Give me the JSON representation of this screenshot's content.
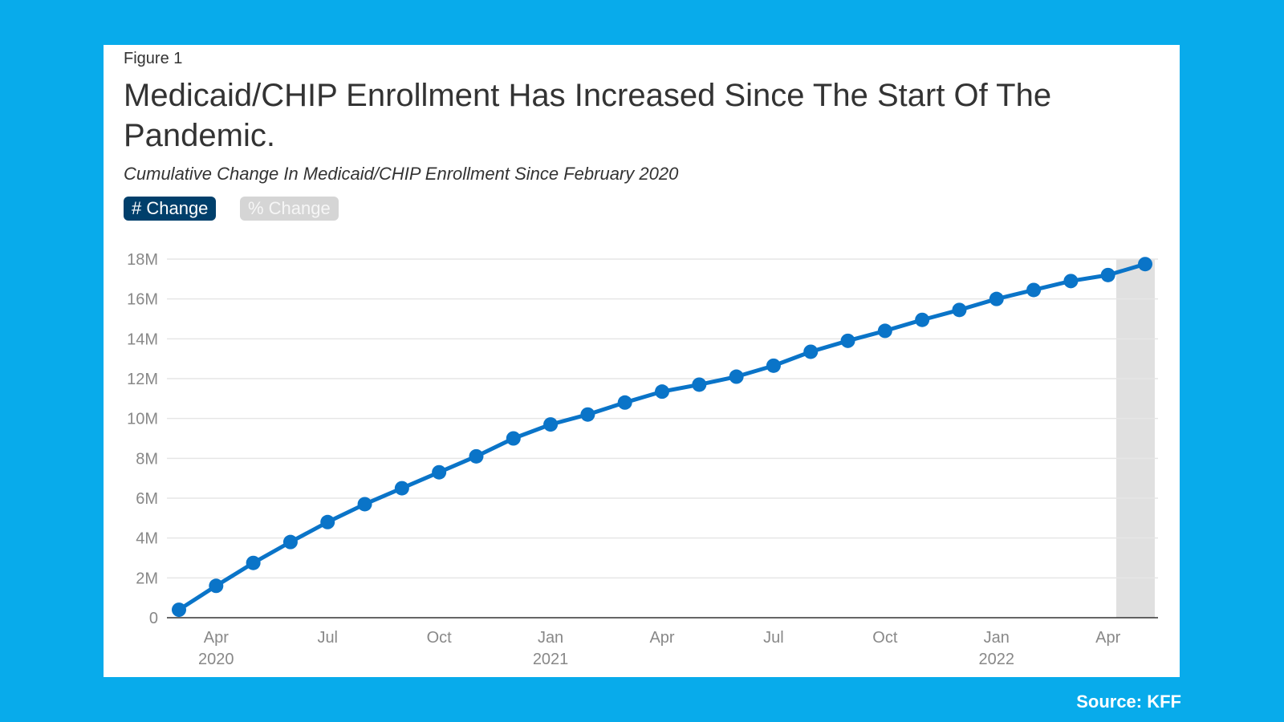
{
  "figure_label": "Figure 1",
  "toggle": {
    "active": "# Change",
    "inactive": "% Change"
  },
  "source": "Source: KFF",
  "colors": {
    "background": "#08abeb",
    "line": "#0a74c8",
    "active_button": "#003f6b",
    "highlight_band": "#e0e0e0"
  },
  "chart_data": {
    "type": "line",
    "title": "Medicaid/CHIP Enrollment Has Increased Since The Start Of The Pandemic.",
    "subtitle": "Cumulative Change In Medicaid/CHIP Enrollment Since February 2020",
    "x": [
      "2020-03",
      "2020-04",
      "2020-05",
      "2020-06",
      "2020-07",
      "2020-08",
      "2020-09",
      "2020-10",
      "2020-11",
      "2020-12",
      "2021-01",
      "2021-02",
      "2021-03",
      "2021-04",
      "2021-05",
      "2021-06",
      "2021-07",
      "2021-08",
      "2021-09",
      "2021-10",
      "2021-11",
      "2021-12",
      "2022-01",
      "2022-02",
      "2022-03",
      "2022-04",
      "2022-05"
    ],
    "values": [
      0.4,
      1.6,
      2.75,
      3.8,
      4.8,
      5.7,
      6.5,
      7.3,
      8.1,
      9.0,
      9.7,
      10.2,
      10.8,
      11.35,
      11.7,
      12.1,
      12.65,
      13.35,
      13.9,
      14.4,
      14.95,
      15.45,
      16.0,
      16.45,
      16.9,
      17.2,
      17.75
    ],
    "unit": "M",
    "ylim": [
      0,
      18
    ],
    "yticks": [
      "0",
      "2M",
      "4M",
      "6M",
      "8M",
      "10M",
      "12M",
      "14M",
      "16M",
      "18M"
    ],
    "xticks": [
      {
        "at": "2020-04",
        "label": "Apr",
        "year": "2020"
      },
      {
        "at": "2020-07",
        "label": "Jul"
      },
      {
        "at": "2020-10",
        "label": "Oct"
      },
      {
        "at": "2021-01",
        "label": "Jan",
        "year": "2021"
      },
      {
        "at": "2021-04",
        "label": "Apr"
      },
      {
        "at": "2021-07",
        "label": "Jul"
      },
      {
        "at": "2021-10",
        "label": "Oct"
      },
      {
        "at": "2022-01",
        "label": "Jan",
        "year": "2022"
      },
      {
        "at": "2022-04",
        "label": "Apr"
      }
    ],
    "highlight": "2022-05",
    "grid": true,
    "legend": "none"
  }
}
